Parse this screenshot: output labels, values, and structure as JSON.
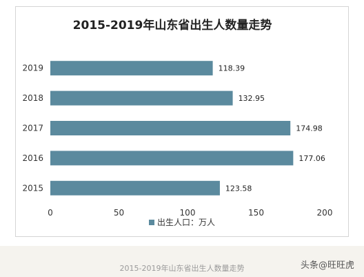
{
  "chart_data": {
    "type": "bar",
    "orientation": "horizontal",
    "title": "2015-2019年山东省出生人数量走势",
    "categories": [
      "2019",
      "2018",
      "2017",
      "2016",
      "2015"
    ],
    "series": [
      {
        "name": "出生人口：万人",
        "values": [
          118.39,
          132.95,
          174.98,
          177.06,
          123.58
        ]
      }
    ],
    "value_labels": [
      "118.39",
      "132.95",
      "174.98",
      "177.06",
      "123.58"
    ],
    "xlim": [
      0,
      200
    ],
    "xticks": [
      0,
      50,
      100,
      150,
      200
    ],
    "grid": false,
    "legend_position": "bottom",
    "bar_color": "#5b8a9e"
  },
  "footer": {
    "caption": "2015-2019年山东省出生人数量走势",
    "watermark": "头条@旺旺虎"
  }
}
